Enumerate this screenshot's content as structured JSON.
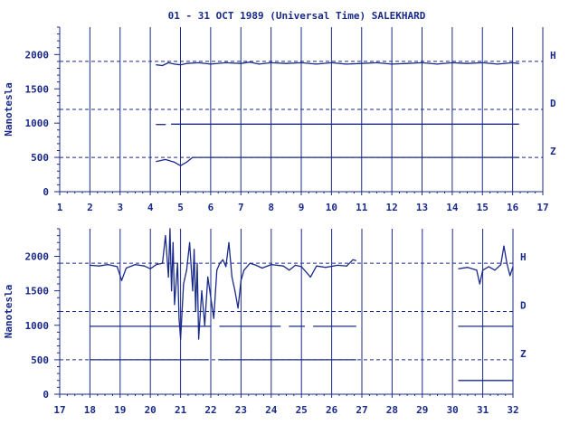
{
  "title": "01 - 31 OCT 1989 (Universal Time) SALEKHARD",
  "colors": {
    "ink": "#1a2a8a",
    "trace": "#1a2a8a",
    "background": "#ffffff"
  },
  "chart_data": [
    {
      "type": "line",
      "ylabel": "Nanotesla",
      "xlim": [
        1,
        17
      ],
      "ylim": [
        0,
        2400
      ],
      "x_ticks": [
        "1",
        "2",
        "3",
        "4",
        "5",
        "6",
        "7",
        "8",
        "9",
        "10",
        "11",
        "12",
        "13",
        "14",
        "15",
        "16",
        "17"
      ],
      "y_ticks": [
        "0",
        "500",
        "1000",
        "1500",
        "2000"
      ],
      "y_tick_values": [
        0,
        500,
        1000,
        1500,
        2000
      ],
      "grid": "vertical lines at each day",
      "baselines": [
        {
          "label": "H",
          "value": 1900
        },
        {
          "label": "D",
          "value": 1200
        },
        {
          "label": "Z",
          "value": 500
        }
      ],
      "series": [
        {
          "name": "H",
          "segments": [
            [
              [
                4.2,
                1850
              ],
              [
                4.4,
                1840
              ],
              [
                4.6,
                1880
              ],
              [
                4.8,
                1860
              ],
              [
                5.0,
                1850
              ],
              [
                5.2,
                1870
              ],
              [
                5.6,
                1880
              ],
              [
                6.0,
                1860
              ],
              [
                6.5,
                1880
              ],
              [
                7.0,
                1870
              ],
              [
                7.3,
                1890
              ],
              [
                7.6,
                1860
              ],
              [
                8.0,
                1880
              ],
              [
                8.5,
                1870
              ],
              [
                9.0,
                1880
              ],
              [
                9.5,
                1860
              ],
              [
                10.0,
                1880
              ],
              [
                10.5,
                1860
              ],
              [
                11.0,
                1870
              ],
              [
                11.5,
                1880
              ],
              [
                12.0,
                1860
              ],
              [
                12.5,
                1870
              ],
              [
                13.0,
                1880
              ],
              [
                13.5,
                1860
              ],
              [
                14.0,
                1880
              ],
              [
                14.5,
                1870
              ],
              [
                15.0,
                1880
              ],
              [
                15.5,
                1860
              ],
              [
                16.0,
                1880
              ],
              [
                16.2,
                1870
              ]
            ]
          ]
        },
        {
          "name": "D",
          "segments": [
            [
              [
                4.2,
                980
              ],
              [
                4.5,
                980
              ]
            ],
            [
              [
                4.7,
                985
              ],
              [
                16.2,
                985
              ]
            ]
          ]
        },
        {
          "name": "Z",
          "segments": [
            [
              [
                4.2,
                440
              ],
              [
                4.5,
                470
              ],
              [
                4.8,
                430
              ],
              [
                5.0,
                380
              ],
              [
                5.2,
                430
              ],
              [
                5.4,
                500
              ],
              [
                16.2,
                500
              ]
            ]
          ]
        }
      ]
    },
    {
      "type": "line",
      "ylabel": "Nanotesla",
      "xlim": [
        17,
        32
      ],
      "ylim": [
        0,
        2400
      ],
      "x_ticks": [
        "17",
        "18",
        "19",
        "20",
        "21",
        "22",
        "23",
        "24",
        "25",
        "26",
        "27",
        "28",
        "29",
        "30",
        "31",
        "32"
      ],
      "y_ticks": [
        "0",
        "500",
        "1000",
        "1500",
        "2000"
      ],
      "y_tick_values": [
        0,
        500,
        1000,
        1500,
        2000
      ],
      "grid": "vertical lines at each day",
      "baselines": [
        {
          "label": "H",
          "value": 1900
        },
        {
          "label": "D",
          "value": 1200
        },
        {
          "label": "Z",
          "value": 500
        }
      ],
      "series": [
        {
          "name": "H",
          "segments": [
            [
              [
                18.0,
                1870
              ],
              [
                18.3,
                1860
              ],
              [
                18.6,
                1880
              ],
              [
                18.9,
                1850
              ],
              [
                19.05,
                1650
              ],
              [
                19.2,
                1830
              ],
              [
                19.5,
                1880
              ],
              [
                19.8,
                1860
              ],
              [
                20.0,
                1820
              ],
              [
                20.2,
                1880
              ],
              [
                20.4,
                1900
              ],
              [
                20.5,
                2300
              ],
              [
                20.6,
                1700
              ],
              [
                20.65,
                2400
              ],
              [
                20.7,
                1500
              ],
              [
                20.75,
                2200
              ],
              [
                20.8,
                1300
              ],
              [
                20.9,
                1900
              ],
              [
                20.95,
                1100
              ],
              [
                21.0,
                800
              ],
              [
                21.1,
                1600
              ],
              [
                21.2,
                1800
              ],
              [
                21.3,
                2200
              ],
              [
                21.4,
                1500
              ],
              [
                21.45,
                2100
              ],
              [
                21.5,
                1200
              ],
              [
                21.55,
                1900
              ],
              [
                21.6,
                800
              ],
              [
                21.7,
                1500
              ],
              [
                21.8,
                1000
              ],
              [
                21.9,
                1700
              ],
              [
                22.0,
                1400
              ],
              [
                22.1,
                1100
              ],
              [
                22.2,
                1800
              ],
              [
                22.3,
                1900
              ],
              [
                22.4,
                1950
              ],
              [
                22.5,
                1850
              ],
              [
                22.6,
                2200
              ],
              [
                22.7,
                1700
              ],
              [
                22.8,
                1500
              ],
              [
                22.9,
                1250
              ],
              [
                23.0,
                1650
              ],
              [
                23.1,
                1800
              ],
              [
                23.3,
                1900
              ],
              [
                23.5,
                1870
              ],
              [
                23.7,
                1830
              ],
              [
                24.0,
                1880
              ],
              [
                24.4,
                1860
              ],
              [
                24.6,
                1800
              ],
              [
                24.8,
                1870
              ],
              [
                25.0,
                1850
              ],
              [
                25.3,
                1700
              ],
              [
                25.5,
                1860
              ],
              [
                25.8,
                1840
              ],
              [
                26.2,
                1870
              ],
              [
                26.5,
                1860
              ],
              [
                26.7,
                1950
              ],
              [
                26.8,
                1940
              ]
            ],
            [
              [
                30.2,
                1820
              ],
              [
                30.5,
                1840
              ],
              [
                30.8,
                1800
              ],
              [
                30.9,
                1600
              ],
              [
                31.0,
                1800
              ],
              [
                31.2,
                1850
              ],
              [
                31.4,
                1800
              ],
              [
                31.6,
                1880
              ],
              [
                31.7,
                2150
              ],
              [
                31.8,
                1900
              ],
              [
                31.9,
                1720
              ],
              [
                32.0,
                1850
              ]
            ]
          ]
        },
        {
          "name": "D",
          "segments": [
            [
              [
                18.0,
                985
              ],
              [
                22.0,
                985
              ]
            ],
            [
              [
                22.3,
                985
              ],
              [
                24.3,
                985
              ]
            ],
            [
              [
                24.6,
                985
              ],
              [
                25.1,
                985
              ]
            ],
            [
              [
                25.4,
                985
              ],
              [
                26.8,
                985
              ]
            ],
            [
              [
                30.2,
                985
              ],
              [
                32.0,
                985
              ]
            ]
          ]
        },
        {
          "name": "Z",
          "segments": [
            [
              [
                18.0,
                500
              ],
              [
                21.9,
                500
              ]
            ],
            [
              [
                22.3,
                500
              ],
              [
                26.8,
                500
              ]
            ],
            [
              [
                30.2,
                200
              ],
              [
                32.0,
                200
              ]
            ]
          ]
        }
      ]
    }
  ]
}
